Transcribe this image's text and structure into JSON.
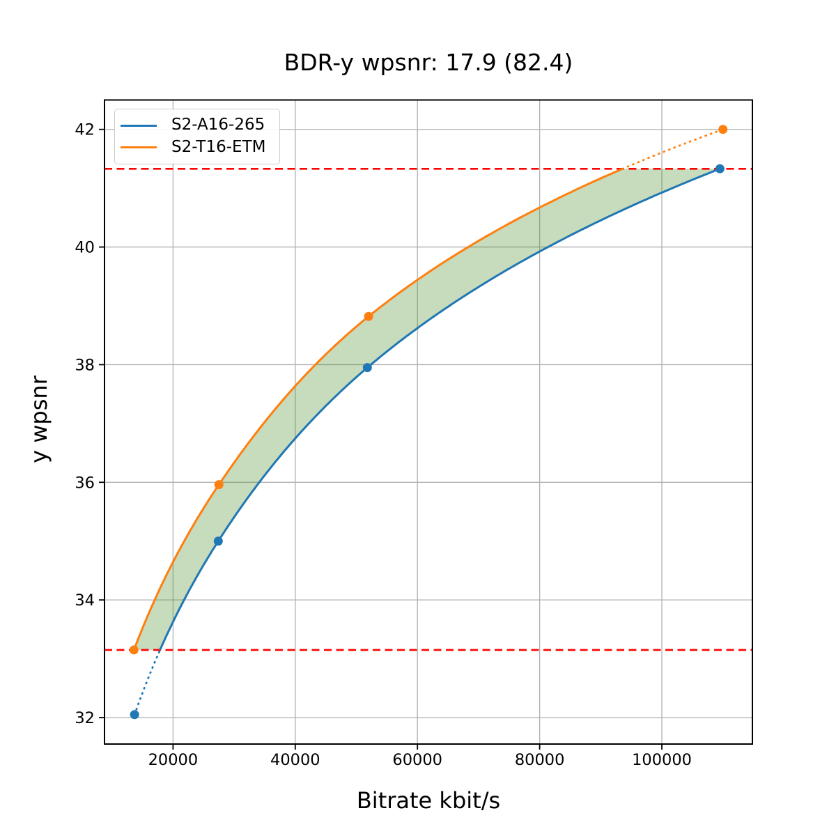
{
  "title": "BDR-y wpsnr: 17.9 (82.4)",
  "legend": {
    "items": [
      {
        "label": "S2-A16-265",
        "color": "#1f77b4"
      },
      {
        "label": "S2-T16-ETM",
        "color": "#ff7f0e"
      }
    ],
    "position": "upper-left"
  },
  "chart_data": {
    "type": "line",
    "title": "BDR-y wpsnr: 17.9 (82.4)",
    "xlabel": "Bitrate kbit/s",
    "ylabel": "y wpsnr",
    "xlim": [
      8780,
      114820
    ],
    "ylim": [
      31.55,
      42.5
    ],
    "xticks": [
      20000,
      40000,
      60000,
      80000,
      100000
    ],
    "xtick_labels": [
      "20000",
      "40000",
      "60000",
      "80000",
      "100000"
    ],
    "yticks": [
      32,
      34,
      36,
      38,
      40,
      42
    ],
    "ytick_labels": [
      "32",
      "34",
      "36",
      "38",
      "40",
      "42"
    ],
    "grid": true,
    "grid_color": "#b0b0b0",
    "legend_position": "upper-left",
    "series": [
      {
        "name": "S2-A16-265",
        "color": "#1f77b4",
        "marker": "circle",
        "x": [
          13700,
          27400,
          51800,
          109500
        ],
        "y": [
          32.05,
          35.0,
          37.95,
          41.33
        ]
      },
      {
        "name": "S2-T16-ETM",
        "color": "#ff7f0e",
        "marker": "circle",
        "x": [
          13600,
          27500,
          52000,
          110000
        ],
        "y": [
          33.15,
          35.96,
          38.82,
          42.0
        ]
      }
    ],
    "overlap_hlines": {
      "low": 33.15,
      "high": 41.33,
      "color": "#ff0000",
      "style": "dashed"
    },
    "fill_between": {
      "color": "#468823",
      "alpha": 0.3,
      "upper_series": "S2-T16-ETM",
      "lower_series": "S2-A16-265",
      "clip_low": 33.15,
      "clip_high": 41.33
    }
  }
}
